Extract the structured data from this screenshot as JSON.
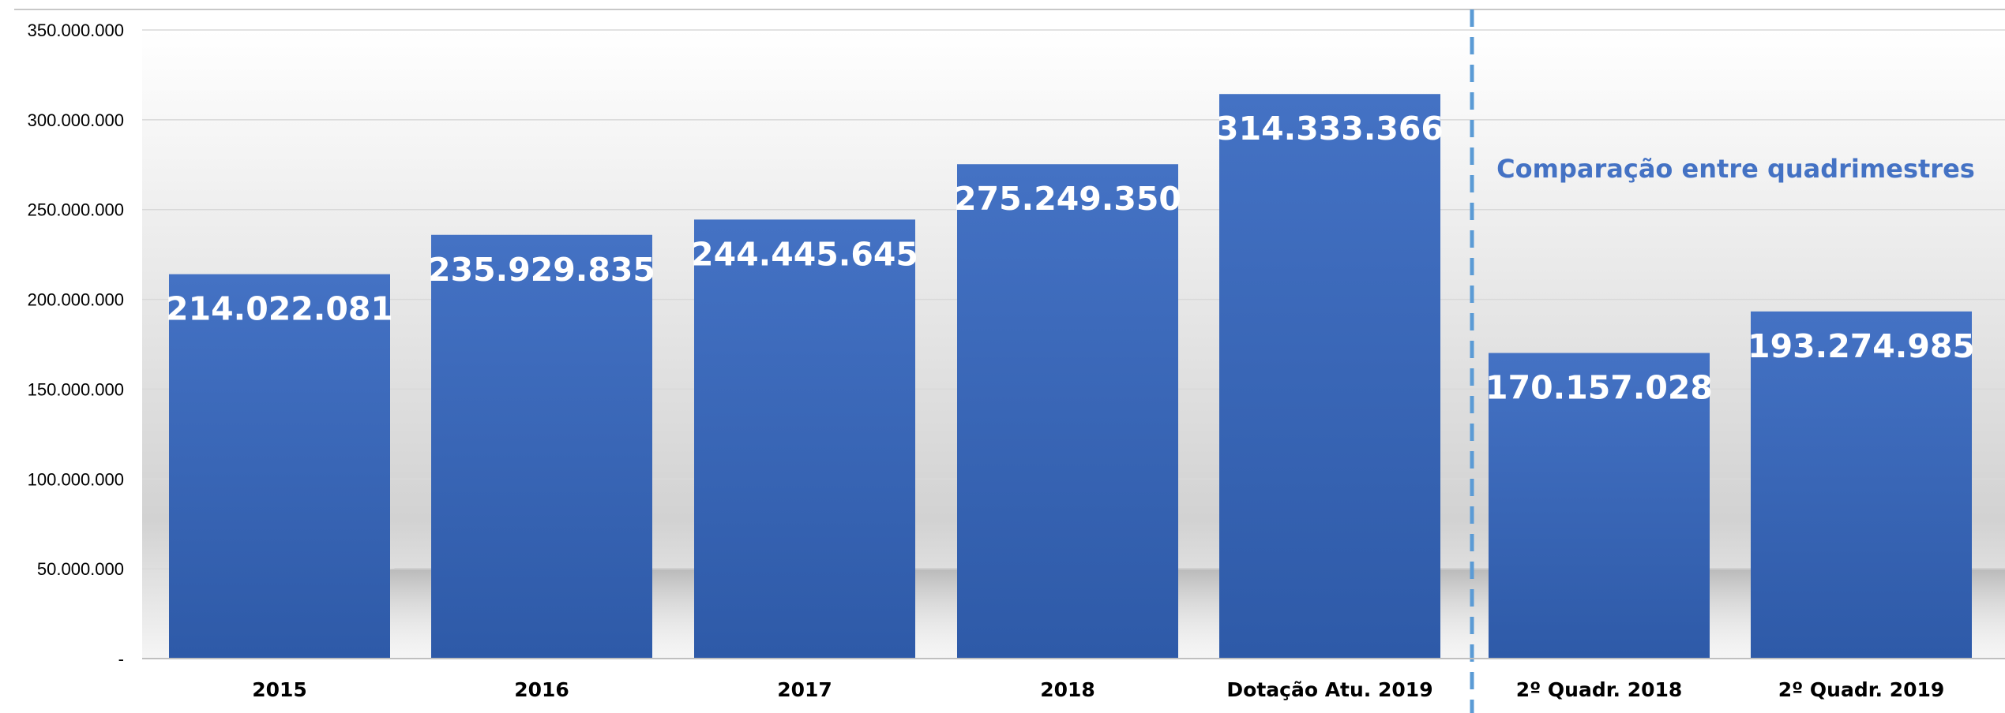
{
  "chart_data": {
    "type": "bar",
    "title": "",
    "xlabel": "",
    "ylabel": "",
    "ylim": [
      0,
      350000000
    ],
    "ytick_values": [
      0,
      50000000,
      100000000,
      150000000,
      200000000,
      250000000,
      300000000,
      350000000
    ],
    "ytick_labels": [
      "-",
      "50.000.000",
      "100.000.000",
      "150.000.000",
      "200.000.000",
      "250.000.000",
      "300.000.000",
      "350.000.000"
    ],
    "categories": [
      "2015",
      "2016",
      "2017",
      "2018",
      "Dotação Atu. 2019",
      "2º Quadr. 2018",
      "2º Quadr. 2019"
    ],
    "values": [
      214022081,
      235929835,
      244445645,
      275249350,
      314333366,
      170157028,
      193274985
    ],
    "data_labels": [
      "214.022.081",
      "235.929.835",
      "244.445.645",
      "275.249.350",
      "314.333.366",
      "170.157.028",
      "193.274.985"
    ],
    "annotation": "Comparação entre quadrimestres",
    "divider_after_category": "Dotação Atu. 2019",
    "grid": true,
    "legend": "none",
    "colors": {
      "bar_top": "#4472c4",
      "bar_bottom": "#2e5aa8",
      "divider": "#5b9bd5",
      "annotation": "#4472c4",
      "gridline": "#d9d9d9"
    }
  }
}
